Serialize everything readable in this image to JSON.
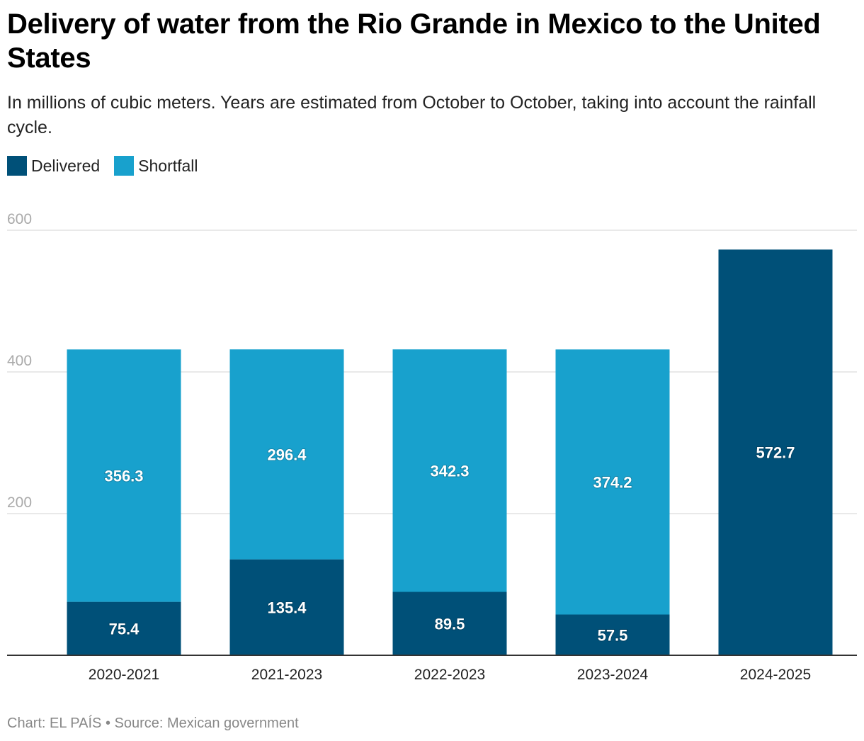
{
  "header": {
    "title": "Delivery of water from the Rio Grande in Mexico to the United States",
    "subtitle": "In millions of cubic meters. Years are estimated from October to October, taking into account the rainfall cycle."
  },
  "legend": [
    {
      "label": "Delivered",
      "color": "#005078"
    },
    {
      "label": "Shortfall",
      "color": "#18A1CD"
    }
  ],
  "footer": {
    "credit": "Chart: EL PAÍS • Source: Mexican government"
  },
  "chart_data": {
    "type": "bar",
    "stacked": true,
    "categories": [
      "2020-2021",
      "2021-2023",
      "2022-2023",
      "2023-2024",
      "2024-2025"
    ],
    "series": [
      {
        "name": "Delivered",
        "color": "#005078",
        "values": [
          75.4,
          135.4,
          89.5,
          57.5,
          572.7
        ]
      },
      {
        "name": "Shortfall",
        "color": "#18A1CD",
        "values": [
          356.3,
          296.4,
          342.3,
          374.2,
          null
        ]
      }
    ],
    "yticks": [
      200,
      400,
      600
    ],
    "ylim": [
      0,
      600
    ],
    "grid": true,
    "legend_position": "top-left"
  }
}
